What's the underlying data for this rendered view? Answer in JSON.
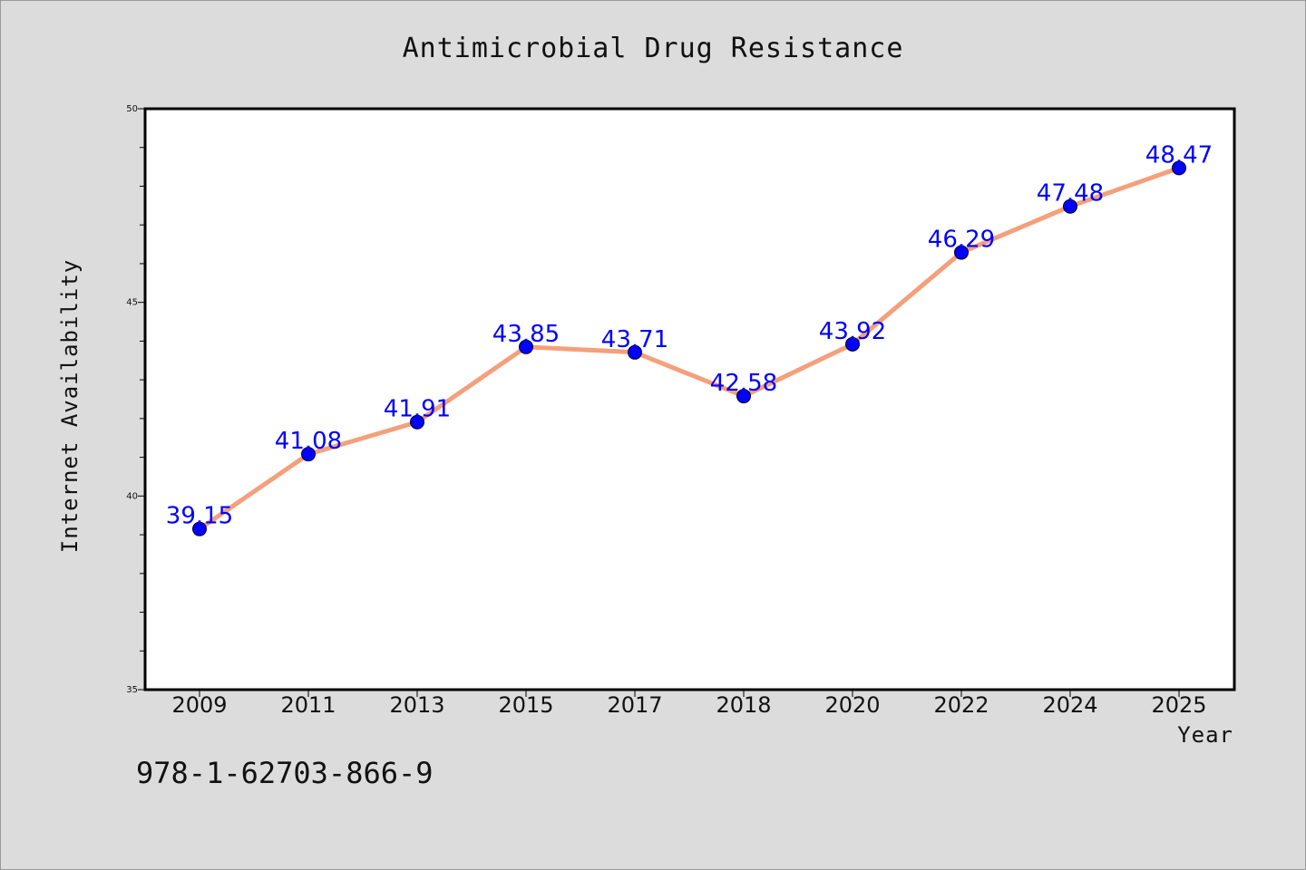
{
  "chart_data": {
    "type": "line",
    "title": "Antimicrobial Drug Resistance",
    "xlabel": "Year",
    "ylabel": "Internet Availability",
    "categories": [
      "2009",
      "2011",
      "2013",
      "2015",
      "2017",
      "2018",
      "2020",
      "2022",
      "2024",
      "2025"
    ],
    "values": [
      39.15,
      41.08,
      41.91,
      43.85,
      43.71,
      42.58,
      43.92,
      46.29,
      47.48,
      48.47
    ],
    "data_labels": [
      "39.15",
      "41.08",
      "41.91",
      "43.85",
      "43.71",
      "42.58",
      "43.92",
      "46.29",
      "47.48",
      "48.47"
    ],
    "ylim": [
      35,
      50
    ],
    "yticks": [
      "35",
      "40",
      "45",
      "50"
    ],
    "grid": false,
    "legend": "none",
    "line_color": "#f4a07c",
    "marker_color": "#0000ff",
    "label_color": "#0000ff"
  },
  "footer_text": "978-1-62703-866-9"
}
